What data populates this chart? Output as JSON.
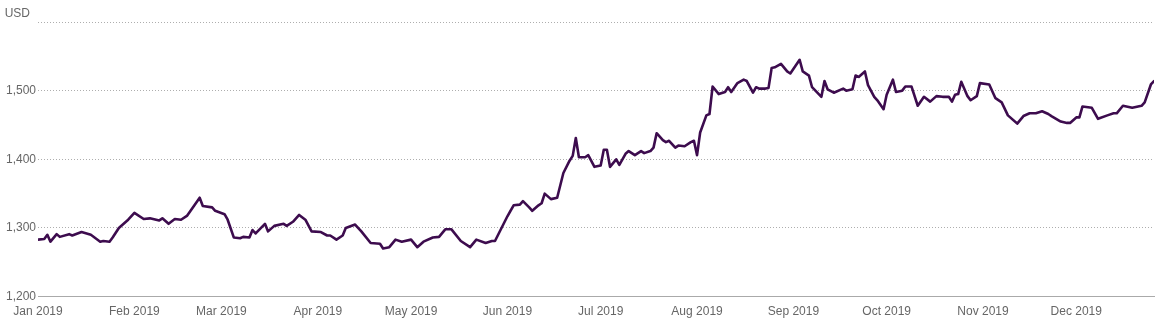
{
  "chart_data": {
    "type": "line",
    "ylabel": "USD",
    "x": [
      "2019-01-01",
      "2019-01-03",
      "2019-01-04",
      "2019-01-05",
      "2019-01-07",
      "2019-01-08",
      "2019-01-11",
      "2019-01-12",
      "2019-01-15",
      "2019-01-18",
      "2019-01-21",
      "2019-01-22",
      "2019-01-24",
      "2019-01-25",
      "2019-01-27",
      "2019-01-30",
      "2019-02-01",
      "2019-02-04",
      "2019-02-06",
      "2019-02-09",
      "2019-02-10",
      "2019-02-12",
      "2019-02-14",
      "2019-02-16",
      "2019-02-18",
      "2019-02-22",
      "2019-02-23",
      "2019-02-26",
      "2019-02-27",
      "2019-03-02",
      "2019-03-03",
      "2019-03-05",
      "2019-03-07",
      "2019-03-08",
      "2019-03-10",
      "2019-03-11",
      "2019-03-12",
      "2019-03-15",
      "2019-03-16",
      "2019-03-18",
      "2019-03-21",
      "2019-03-22",
      "2019-03-24",
      "2019-03-26",
      "2019-03-28",
      "2019-03-30",
      "2019-04-02",
      "2019-04-04",
      "2019-04-05",
      "2019-04-07",
      "2019-04-09",
      "2019-04-10",
      "2019-04-13",
      "2019-04-15",
      "2019-04-18",
      "2019-04-21",
      "2019-04-22",
      "2019-04-24",
      "2019-04-26",
      "2019-04-28",
      "2019-05-01",
      "2019-05-03",
      "2019-05-05",
      "2019-05-08",
      "2019-05-10",
      "2019-05-12",
      "2019-05-14",
      "2019-05-17",
      "2019-05-20",
      "2019-05-22",
      "2019-05-25",
      "2019-05-27",
      "2019-05-28",
      "2019-06-01",
      "2019-06-03",
      "2019-06-05",
      "2019-06-06",
      "2019-06-08",
      "2019-06-09",
      "2019-06-11",
      "2019-06-12",
      "2019-06-13",
      "2019-06-15",
      "2019-06-17",
      "2019-06-19",
      "2019-06-21",
      "2019-06-22",
      "2019-06-23",
      "2019-06-24",
      "2019-06-26",
      "2019-06-27",
      "2019-06-29",
      "2019-07-01",
      "2019-07-02",
      "2019-07-03",
      "2019-07-04",
      "2019-07-06",
      "2019-07-07",
      "2019-07-09",
      "2019-07-10",
      "2019-07-12",
      "2019-07-14",
      "2019-07-15",
      "2019-07-17",
      "2019-07-18",
      "2019-07-19",
      "2019-07-21",
      "2019-07-22",
      "2019-07-23",
      "2019-07-25",
      "2019-07-26",
      "2019-07-28",
      "2019-07-30",
      "2019-07-31",
      "2019-08-01",
      "2019-08-02",
      "2019-08-04",
      "2019-08-05",
      "2019-08-06",
      "2019-08-08",
      "2019-08-10",
      "2019-08-11",
      "2019-08-12",
      "2019-08-14",
      "2019-08-16",
      "2019-08-17",
      "2019-08-19",
      "2019-08-20",
      "2019-08-21",
      "2019-08-23",
      "2019-08-24",
      "2019-08-25",
      "2019-08-26",
      "2019-08-28",
      "2019-08-30",
      "2019-08-31",
      "2019-09-03",
      "2019-09-04",
      "2019-09-06",
      "2019-09-07",
      "2019-09-10",
      "2019-09-11",
      "2019-09-12",
      "2019-09-14",
      "2019-09-17",
      "2019-09-18",
      "2019-09-20",
      "2019-09-21",
      "2019-09-22",
      "2019-09-24",
      "2019-09-25",
      "2019-09-27",
      "2019-09-28",
      "2019-09-30",
      "2019-10-01",
      "2019-10-03",
      "2019-10-04",
      "2019-10-06",
      "2019-10-07",
      "2019-10-09",
      "2019-10-11",
      "2019-10-13",
      "2019-10-15",
      "2019-10-17",
      "2019-10-19",
      "2019-10-21",
      "2019-10-22",
      "2019-10-23",
      "2019-10-24",
      "2019-10-25",
      "2019-10-27",
      "2019-10-28",
      "2019-10-30",
      "2019-10-31",
      "2019-11-03",
      "2019-11-05",
      "2019-11-07",
      "2019-11-09",
      "2019-11-12",
      "2019-11-14",
      "2019-11-16",
      "2019-11-18",
      "2019-11-20",
      "2019-11-22",
      "2019-11-23",
      "2019-11-26",
      "2019-11-28",
      "2019-11-29",
      "2019-12-01",
      "2019-12-02",
      "2019-12-03",
      "2019-12-06",
      "2019-12-08",
      "2019-12-11",
      "2019-12-13",
      "2019-12-14",
      "2019-12-16",
      "2019-12-19",
      "2019-12-22",
      "2019-12-23",
      "2019-12-25",
      "2019-12-26"
    ],
    "series": [
      {
        "color": "#3d0c4e",
        "values": [
          1283,
          1284,
          1290,
          1280,
          1291,
          1287,
          1291,
          1289,
          1294,
          1290,
          1280,
          1281,
          1280,
          1286,
          1300,
          1312,
          1322,
          1313,
          1314,
          1311,
          1314,
          1306,
          1313,
          1312,
          1318,
          1344,
          1332,
          1330,
          1325,
          1320,
          1312,
          1286,
          1285,
          1287,
          1286,
          1297,
          1292,
          1306,
          1295,
          1303,
          1306,
          1303,
          1309,
          1319,
          1312,
          1295,
          1294,
          1289,
          1289,
          1283,
          1289,
          1300,
          1305,
          1295,
          1278,
          1277,
          1270,
          1272,
          1283,
          1280,
          1283,
          1272,
          1280,
          1286,
          1287,
          1298,
          1298,
          1281,
          1272,
          1283,
          1278,
          1281,
          1281,
          1317,
          1333,
          1334,
          1339,
          1330,
          1325,
          1333,
          1336,
          1350,
          1342,
          1344,
          1380,
          1398,
          1405,
          1431,
          1403,
          1403,
          1406,
          1389,
          1391,
          1414,
          1414,
          1389,
          1400,
          1392,
          1408,
          1412,
          1406,
          1412,
          1409,
          1412,
          1417,
          1438,
          1428,
          1425,
          1427,
          1417,
          1420,
          1419,
          1425,
          1427,
          1406,
          1439,
          1464,
          1466,
          1506,
          1495,
          1498,
          1505,
          1498,
          1511,
          1516,
          1514,
          1497,
          1505,
          1503,
          1503,
          1504,
          1533,
          1534,
          1539,
          1528,
          1525,
          1545,
          1528,
          1522,
          1505,
          1491,
          1514,
          1502,
          1497,
          1503,
          1500,
          1502,
          1522,
          1520,
          1528,
          1508,
          1491,
          1486,
          1473,
          1494,
          1516,
          1498,
          1500,
          1506,
          1506,
          1478,
          1491,
          1484,
          1492,
          1491,
          1491,
          1484,
          1494,
          1495,
          1513,
          1492,
          1486,
          1492,
          1511,
          1509,
          1489,
          1483,
          1464,
          1452,
          1463,
          1467,
          1467,
          1470,
          1466,
          1463,
          1455,
          1453,
          1453,
          1461,
          1461,
          1477,
          1475,
          1459,
          1464,
          1467,
          1467,
          1478,
          1475,
          1478,
          1483,
          1509,
          1514
        ]
      }
    ],
    "xlim": [
      "2019-01-01",
      "2019-12-26"
    ],
    "xticks": [
      {
        "value": "2019-01-01",
        "label": "Jan 2019"
      },
      {
        "value": "2019-02-01",
        "label": "Feb 2019"
      },
      {
        "value": "2019-03-01",
        "label": "Mar 2019"
      },
      {
        "value": "2019-04-01",
        "label": "Apr 2019"
      },
      {
        "value": "2019-05-01",
        "label": "May 2019"
      },
      {
        "value": "2019-06-01",
        "label": "Jun 2019"
      },
      {
        "value": "2019-07-01",
        "label": "Jul 2019"
      },
      {
        "value": "2019-08-01",
        "label": "Aug 2019"
      },
      {
        "value": "2019-09-01",
        "label": "Sep 2019"
      },
      {
        "value": "2019-10-01",
        "label": "Oct 2019"
      },
      {
        "value": "2019-11-01",
        "label": "Nov 2019"
      },
      {
        "value": "2019-12-01",
        "label": "Dec 2019"
      }
    ],
    "ylim": [
      1200,
      1600
    ],
    "yticks": [
      {
        "value": 1200,
        "label": "1,200"
      },
      {
        "value": 1300,
        "label": "1,300"
      },
      {
        "value": 1400,
        "label": "1,400"
      },
      {
        "value": 1500,
        "label": "1,500"
      },
      {
        "value": 1600,
        "label": null
      }
    ],
    "grid": "y",
    "legend": false,
    "marker": "none",
    "line_style": "solid"
  }
}
